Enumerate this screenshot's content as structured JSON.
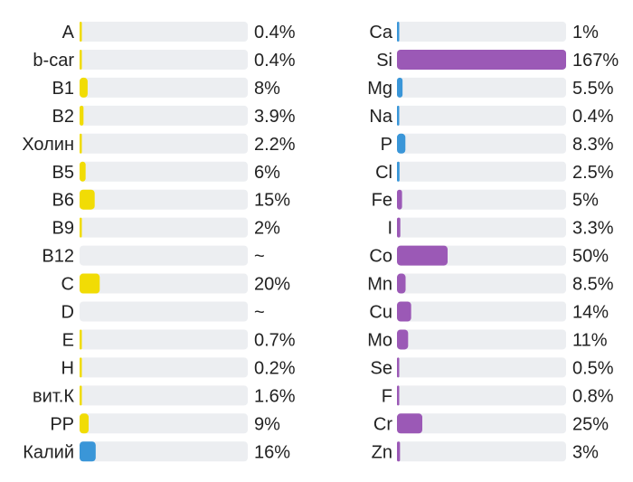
{
  "colors": {
    "track": "#eceef1",
    "yellow": "#f1dc05",
    "blue": "#3a96d8",
    "purple": "#9b59b6"
  },
  "chart_data": [
    {
      "type": "bar",
      "orientation": "horizontal",
      "title": "",
      "value_max": 167,
      "categories": [
        "A",
        "b-car",
        "B1",
        "B2",
        "Холин",
        "B5",
        "B6",
        "B9",
        "B12",
        "C",
        "D",
        "E",
        "H",
        "вит.К",
        "PP",
        "Калий"
      ],
      "values": [
        0.4,
        0.4,
        8,
        3.9,
        2.2,
        6,
        15,
        2,
        null,
        20,
        null,
        0.7,
        0.2,
        1.6,
        9,
        16
      ],
      "value_labels": [
        "0.4%",
        "0.4%",
        "8%",
        "3.9%",
        "2.2%",
        "6%",
        "15%",
        "2%",
        "~",
        "20%",
        "~",
        "0.7%",
        "0.2%",
        "1.6%",
        "9%",
        "16%"
      ],
      "bar_colors": [
        "yellow",
        "yellow",
        "yellow",
        "yellow",
        "yellow",
        "yellow",
        "yellow",
        "yellow",
        "yellow",
        "yellow",
        "yellow",
        "yellow",
        "yellow",
        "yellow",
        "yellow",
        "blue"
      ]
    },
    {
      "type": "bar",
      "orientation": "horizontal",
      "title": "",
      "value_max": 167,
      "categories": [
        "Ca",
        "Si",
        "Mg",
        "Na",
        "P",
        "Cl",
        "Fe",
        "I",
        "Co",
        "Mn",
        "Cu",
        "Mo",
        "Se",
        "F",
        "Cr",
        "Zn"
      ],
      "values": [
        1,
        167,
        5.5,
        0.4,
        8.3,
        2.5,
        5,
        3.3,
        50,
        8.5,
        14,
        11,
        0.5,
        0.8,
        25,
        3
      ],
      "value_labels": [
        "1%",
        "167%",
        "5.5%",
        "0.4%",
        "8.3%",
        "2.5%",
        "5%",
        "3.3%",
        "50%",
        "8.5%",
        "14%",
        "11%",
        "0.5%",
        "0.8%",
        "25%",
        "3%"
      ],
      "bar_colors": [
        "blue",
        "purple",
        "blue",
        "blue",
        "blue",
        "blue",
        "purple",
        "purple",
        "purple",
        "purple",
        "purple",
        "purple",
        "purple",
        "purple",
        "purple",
        "purple"
      ]
    }
  ]
}
